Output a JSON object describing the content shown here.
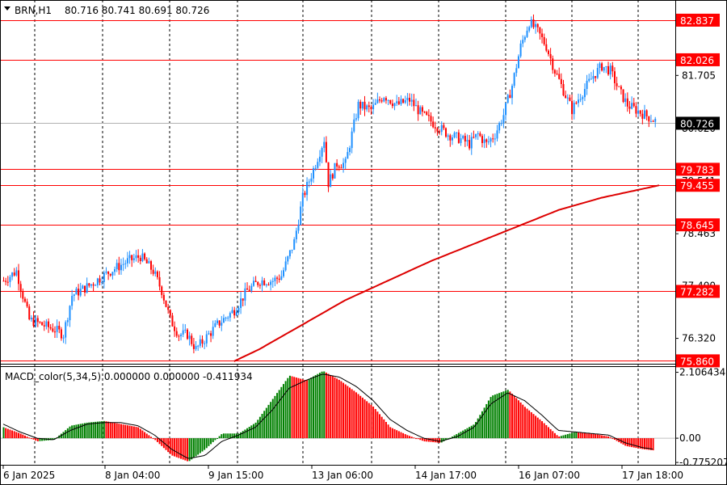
{
  "header": {
    "symbol_timeframe": "BRN,H1",
    "ohlc": "80.716 80.741 80.691 80.726"
  },
  "indicator_header": "MACD_color(5,34,5) 0.000000 0.000000 -0.411934",
  "colors": {
    "bull": "#1E90FF",
    "bear": "#FF0000",
    "ma": "#DD0000",
    "level_line": "#FF0000",
    "level_label_bg": "#FF0000",
    "current_label_bg": "#000000",
    "macd_pos": "#008000",
    "macd_neg": "#FF0000",
    "grid": "#000000"
  },
  "chart_data": [
    {
      "type": "candlestick",
      "symbol": "BRN",
      "timeframe": "H1",
      "ylim": [
        75.8,
        83.25
      ],
      "y_ticks": [
        "81.705",
        "80.620",
        "79.541",
        "78.463",
        "77.400",
        "76.320"
      ],
      "x_tick_labels": [
        "6 Jan 2025",
        "8 Jan 04:00",
        "9 Jan 15:00",
        "13 Jan 06:00",
        "14 Jan 17:00",
        "16 Jan 07:00",
        "17 Jan 18:00"
      ],
      "current_price": "80.726",
      "horizontal_levels": [
        "82.837",
        "82.026",
        "79.783",
        "79.455",
        "78.645",
        "77.282",
        "75.860"
      ],
      "price_path": [
        [
          0,
          77.5
        ],
        [
          6,
          77.7
        ],
        [
          12,
          76.7
        ],
        [
          18,
          76.6
        ],
        [
          24,
          76.5
        ],
        [
          28,
          76.4
        ],
        [
          32,
          77.2
        ],
        [
          40,
          77.4
        ],
        [
          50,
          77.7
        ],
        [
          58,
          77.9
        ],
        [
          64,
          78.0
        ],
        [
          70,
          77.7
        ],
        [
          74,
          77.3
        ],
        [
          78,
          76.7
        ],
        [
          82,
          76.4
        ],
        [
          86,
          76.4
        ],
        [
          90,
          76.1
        ],
        [
          94,
          76.3
        ],
        [
          100,
          76.6
        ],
        [
          108,
          76.9
        ],
        [
          114,
          77.3
        ],
        [
          120,
          77.5
        ],
        [
          126,
          77.5
        ],
        [
          130,
          77.6
        ],
        [
          136,
          78.3
        ],
        [
          140,
          79.2
        ],
        [
          146,
          79.9
        ],
        [
          150,
          80.4
        ],
        [
          152,
          79.5
        ],
        [
          156,
          79.9
        ],
        [
          160,
          79.9
        ],
        [
          166,
          81.1
        ],
        [
          172,
          81.0
        ],
        [
          178,
          81.3
        ],
        [
          184,
          81.1
        ],
        [
          190,
          81.2
        ],
        [
          196,
          80.9
        ],
        [
          202,
          80.7
        ],
        [
          208,
          80.5
        ],
        [
          214,
          80.4
        ],
        [
          218,
          80.3
        ],
        [
          222,
          80.5
        ],
        [
          226,
          80.3
        ],
        [
          230,
          80.5
        ],
        [
          234,
          80.9
        ],
        [
          238,
          81.5
        ],
        [
          242,
          82.3
        ],
        [
          246,
          82.8
        ],
        [
          250,
          82.6
        ],
        [
          254,
          82.3
        ],
        [
          258,
          81.8
        ],
        [
          262,
          81.4
        ],
        [
          266,
          81.0
        ],
        [
          270,
          81.3
        ],
        [
          276,
          81.7
        ],
        [
          280,
          81.9
        ],
        [
          284,
          81.8
        ],
        [
          288,
          81.4
        ],
        [
          292,
          81.1
        ],
        [
          296,
          81.0
        ],
        [
          300,
          80.9
        ],
        [
          304,
          80.8
        ],
        [
          307,
          80.73
        ]
      ],
      "moving_average_path": [
        [
          108,
          75.85
        ],
        [
          120,
          76.1
        ],
        [
          140,
          76.6
        ],
        [
          160,
          77.1
        ],
        [
          180,
          77.5
        ],
        [
          200,
          77.9
        ],
        [
          220,
          78.25
        ],
        [
          240,
          78.6
        ],
        [
          260,
          78.95
        ],
        [
          280,
          79.2
        ],
        [
          307,
          79.455
        ]
      ]
    },
    {
      "type": "bar",
      "name": "MACD_color(5,34,5)",
      "ylim": [
        -0.85,
        2.25
      ],
      "y_ticks": [
        "2.106434",
        "0.00",
        "-0.775207"
      ],
      "values": [
        0.35,
        0.15,
        -0.1,
        -0.05,
        0.4,
        0.5,
        0.55,
        0.45,
        0.35,
        -0.05,
        -0.55,
        -0.75,
        -0.35,
        0.15,
        0.15,
        0.5,
        1.25,
        2.0,
        1.85,
        2.15,
        1.85,
        1.45,
        1.0,
        0.35,
        0.1,
        -0.1,
        -0.15,
        0.15,
        0.45,
        1.35,
        1.55,
        1.0,
        0.55,
        0.05,
        0.2,
        0.15,
        0.05,
        -0.25,
        -0.35,
        -0.41
      ],
      "signal": [
        0.45,
        0.2,
        0.0,
        -0.05,
        0.25,
        0.45,
        0.5,
        0.5,
        0.4,
        0.1,
        -0.35,
        -0.65,
        -0.55,
        -0.1,
        0.1,
        0.35,
        0.9,
        1.6,
        1.85,
        2.05,
        1.95,
        1.65,
        1.2,
        0.6,
        0.25,
        0.0,
        -0.1,
        0.05,
        0.35,
        1.1,
        1.45,
        1.2,
        0.75,
        0.25,
        0.2,
        0.15,
        0.1,
        -0.15,
        -0.3,
        -0.38
      ]
    }
  ]
}
